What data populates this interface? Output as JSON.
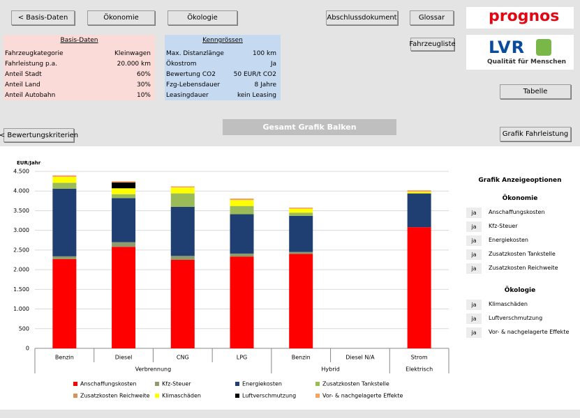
{
  "nav": {
    "basis": "< Basis-Daten",
    "oekonomie": "Ökonomie",
    "oekologie": "Ökologie",
    "abschluss": "Abschlussdokument",
    "glossar": "Glossar",
    "fahrzeugliste": "Fahrzeugliste",
    "tabelle": "Tabelle",
    "bewertung": "< Bewertungskriterien",
    "fahrleistung": "Grafik Fahrleistung"
  },
  "logos": {
    "prognos": "prognos",
    "lvr": "LVR",
    "lvr_claim": "Qualität für Menschen"
  },
  "basis_daten": {
    "title": "Basis-Daten",
    "rows": [
      [
        "Fahrzeugkategorie",
        "Kleinwagen"
      ],
      [
        "Fahrleistung p.a.",
        "20.000 km"
      ],
      [
        "Anteil Stadt",
        "60%"
      ],
      [
        "Anteil Land",
        "30%"
      ],
      [
        "Anteil Autobahn",
        "10%"
      ]
    ]
  },
  "kenngroessen": {
    "title": "Kenngrössen",
    "rows": [
      [
        "Max. Distanzlänge",
        "100 km"
      ],
      [
        "Ökostrom",
        "Ja"
      ],
      [
        "Bewertung CO2",
        "50 EUR/t CO2"
      ],
      [
        "Fzg-Lebensdauer",
        "8 Jahre"
      ],
      [
        "Leasingdauer",
        "kein Leasing"
      ]
    ]
  },
  "chart_title": "Gesamt Grafik Balken",
  "chart_data": {
    "type": "stacked_bar",
    "y_label": "EUR/Jahr",
    "categories": [
      "Benzin",
      "Diesel",
      "CNG",
      "LPG",
      "Benzin",
      "Diesel N/A",
      "Strom"
    ],
    "groups": [
      {
        "name": "Verbrennung",
        "span": 4
      },
      {
        "name": "Hybrid",
        "span": 2
      },
      {
        "name": "Elektrisch",
        "span": 1
      }
    ],
    "ylim": [
      0,
      4500
    ],
    "yticks": [
      {
        "value": 0,
        "label": "0"
      },
      {
        "value": 500,
        "label": "500"
      },
      {
        "value": 1000,
        "label": "1.000"
      },
      {
        "value": 1500,
        "label": "1.500"
      },
      {
        "value": 2000,
        "label": "2.000"
      },
      {
        "value": 2500,
        "label": "2.500"
      },
      {
        "value": 3000,
        "label": "3.000"
      },
      {
        "value": 3500,
        "label": "3.500"
      },
      {
        "value": 4000,
        "label": "4.000"
      },
      {
        "value": 4500,
        "label": "4.500"
      }
    ],
    "grid": true,
    "series": [
      {
        "name": "Anschaffungskosten",
        "color": "#ff0000",
        "values": [
          2270,
          2580,
          2250,
          2330,
          2400,
          null,
          3080
        ]
      },
      {
        "name": "Kfz-Steuer",
        "color": "#8f9a6e",
        "values": [
          70,
          120,
          100,
          80,
          50,
          null,
          0
        ]
      },
      {
        "name": "Energiekosten",
        "color": "#1f3f73",
        "values": [
          1720,
          1120,
          1250,
          1000,
          920,
          null,
          860
        ]
      },
      {
        "name": "Zusatzkosten Tankstelle",
        "color": "#9bbb59",
        "values": [
          150,
          100,
          340,
          210,
          80,
          null,
          0
        ]
      },
      {
        "name": "Zusatzkosten Reichweite",
        "color": "#d9925a",
        "values": [
          0,
          0,
          0,
          0,
          0,
          null,
          0
        ]
      },
      {
        "name": "Klimaschäden",
        "color": "#ffff00",
        "values": [
          150,
          150,
          150,
          150,
          100,
          null,
          40
        ]
      },
      {
        "name": "Luftverschmutzung",
        "color": "#000000",
        "values": [
          0,
          150,
          0,
          0,
          0,
          null,
          0
        ]
      },
      {
        "name": "Vor- & nachgelagerte Effekte",
        "color": "#f4a460",
        "values": [
          40,
          30,
          30,
          40,
          30,
          null,
          40
        ]
      }
    ]
  },
  "options": {
    "title": "Grafik Anzeigeoptionen",
    "groups": [
      {
        "title": "Ökonomie",
        "items": [
          [
            "ja",
            "Anschaffungskosten"
          ],
          [
            "ja",
            "Kfz-Steuer"
          ],
          [
            "ja",
            "Energiekosten"
          ],
          [
            "ja",
            "Zusatzkosten Tankstelle"
          ],
          [
            "ja",
            "Zusatzkosten Reichweite"
          ]
        ]
      },
      {
        "title": "Ökologie",
        "items": [
          [
            "ja",
            "Klimaschäden"
          ],
          [
            "ja",
            "Luftverschmutzung"
          ],
          [
            "ja",
            "Vor- & nachgelagerte Effekte"
          ]
        ]
      }
    ]
  }
}
